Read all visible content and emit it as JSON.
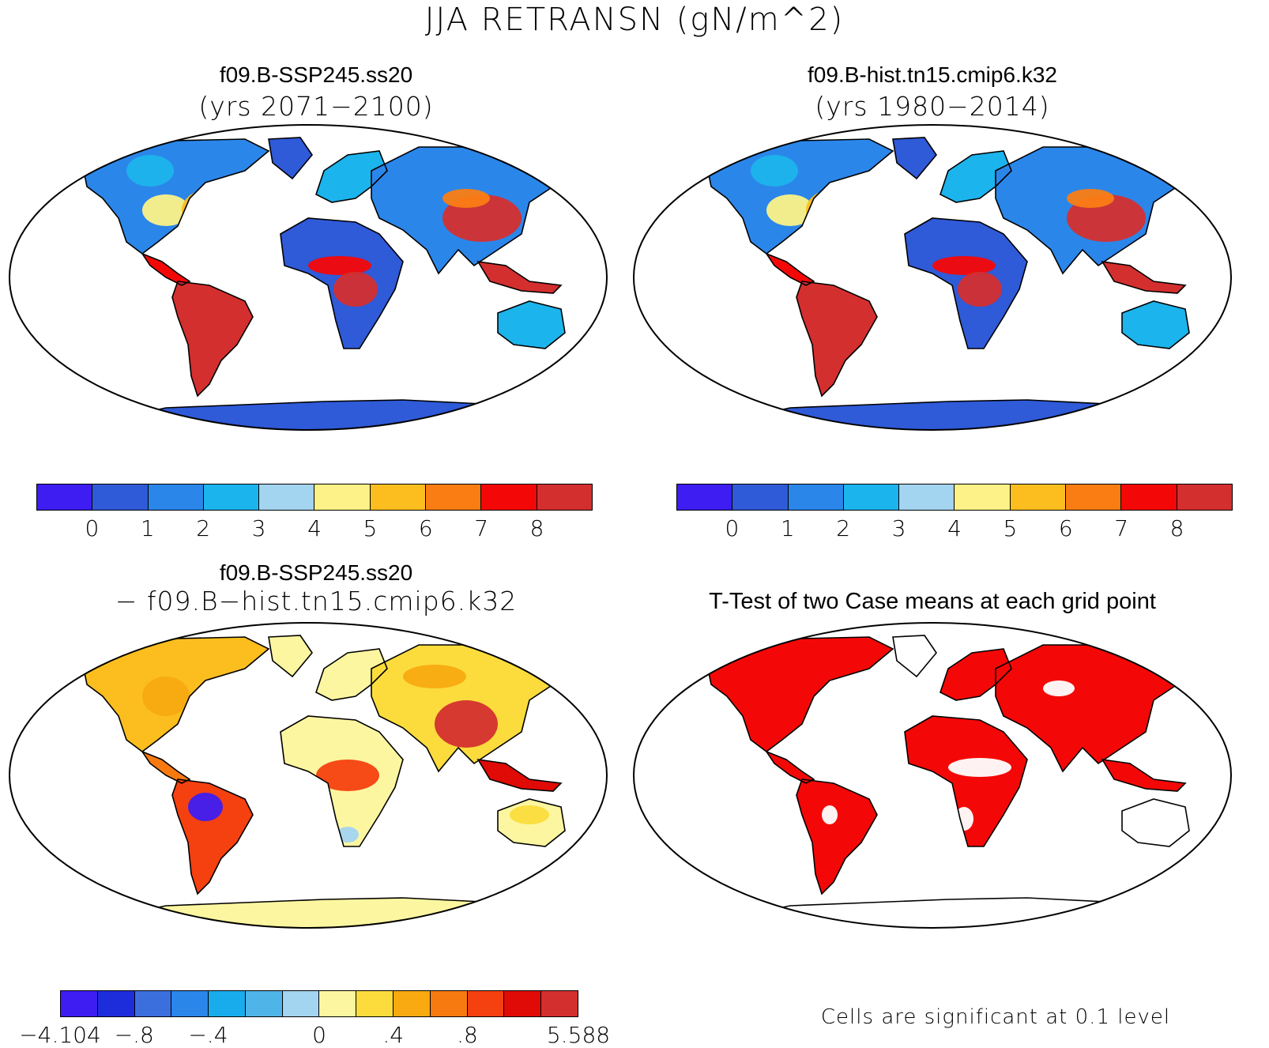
{
  "main_title": "JJA RETRANSN (gN/m^2)",
  "panels": [
    {
      "title": "f09.B-SSP245.ss20",
      "subtitle": "(yrs 2071−2100)",
      "scheme": "absolute"
    },
    {
      "title": "f09.B-hist.tn15.cmip6.k32",
      "subtitle": "(yrs 1980−2014)",
      "scheme": "absolute"
    },
    {
      "title": "f09.B-SSP245.ss20",
      "subtitle": "− f09.B−hist.tn15.cmip6.k32",
      "scheme": "difference"
    },
    {
      "title": "T-Test of two Case means at each grid point",
      "subtitle": "",
      "scheme": "significance"
    }
  ],
  "colorbars": {
    "absolute": {
      "colors": [
        "#3d1df2",
        "#2f5ad8",
        "#2b86ea",
        "#1cb4ec",
        "#a3d4f0",
        "#fdf287",
        "#fbbe1e",
        "#fa7d13",
        "#f40807",
        "#d42f2f"
      ],
      "labels": [
        "0",
        "1",
        "2",
        "3",
        "4",
        "5",
        "6",
        "7",
        "8"
      ]
    },
    "difference": {
      "colors": [
        "#3d1df2",
        "#1e2ddb",
        "#3c6fde",
        "#2b86ea",
        "#18acec",
        "#4fb4e8",
        "#a3d4f0",
        "#fdf6a0",
        "#fbdc3c",
        "#f8aa10",
        "#f77a10",
        "#f54010",
        "#e00b06",
        "#d42f2f"
      ],
      "labels": [
        "−4.104",
        "−.8",
        "−.4",
        "0",
        ".4",
        ".8",
        "5.588"
      ],
      "label_slots": [
        0,
        2,
        4,
        7,
        9,
        11,
        14
      ]
    }
  },
  "significance_note": "Cells are significant at 0.1 level"
}
